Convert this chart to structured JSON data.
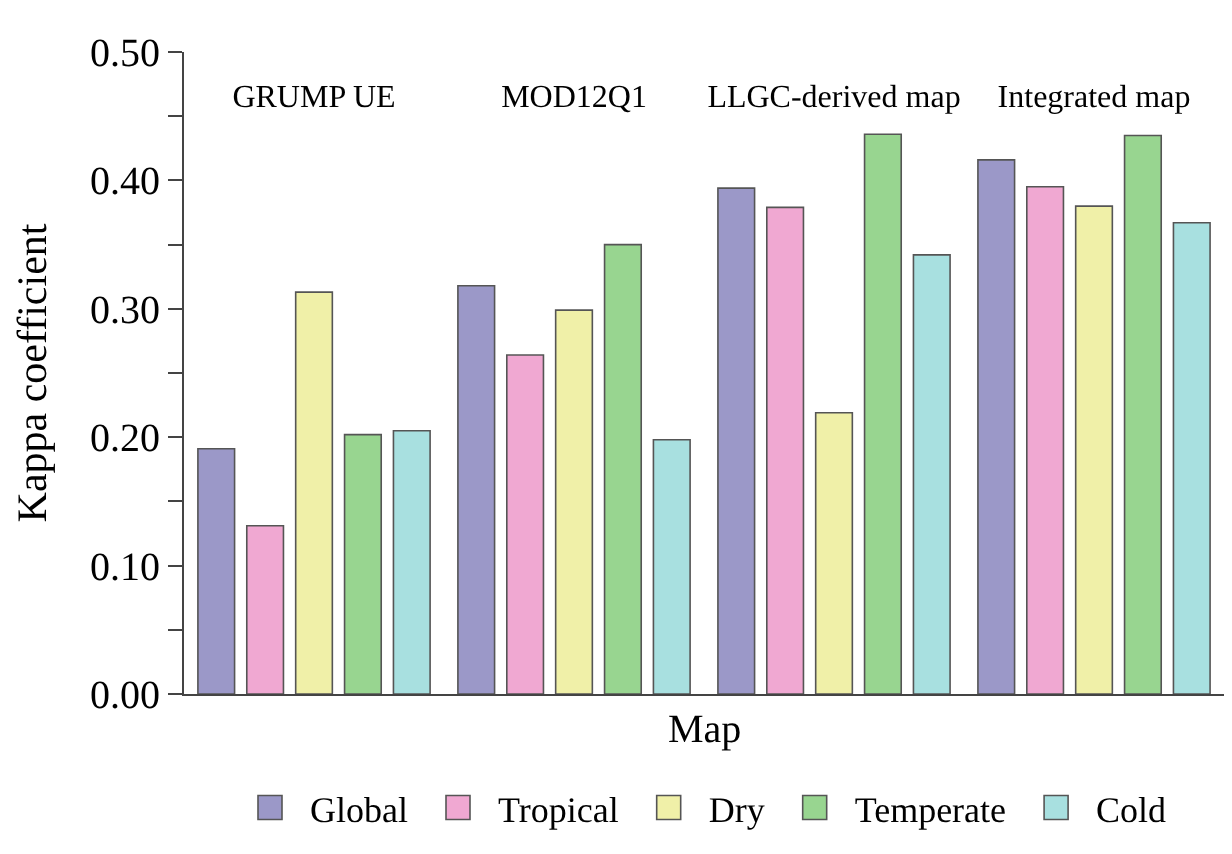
{
  "chart_data": {
    "type": "bar",
    "xlabel": "Map",
    "ylabel": "Kappa coefficient",
    "categories": [
      "GRUMP UE",
      "MOD12Q1",
      "LLGC-derived map",
      "Integrated map"
    ],
    "series": [
      {
        "name": "Global",
        "color": "#9b98c8",
        "values": [
          0.191,
          0.318,
          0.394,
          0.416
        ]
      },
      {
        "name": "Tropical",
        "color": "#f0a8d2",
        "values": [
          0.131,
          0.264,
          0.379,
          0.395
        ]
      },
      {
        "name": "Dry",
        "color": "#f0f0a8",
        "values": [
          0.313,
          0.299,
          0.219,
          0.38
        ]
      },
      {
        "name": "Temperate",
        "color": "#98d590",
        "values": [
          0.202,
          0.35,
          0.436,
          0.435
        ]
      },
      {
        "name": "Cold",
        "color": "#a8e0e0",
        "values": [
          0.205,
          0.198,
          0.342,
          0.367
        ]
      }
    ],
    "ylim": [
      0,
      0.5
    ],
    "yticks": [
      {
        "value": 0,
        "label": "0.00"
      },
      {
        "value": 0.05,
        "label": null
      },
      {
        "value": 0.1,
        "label": "0.10"
      },
      {
        "value": 0.15,
        "label": null
      },
      {
        "value": 0.2,
        "label": "0.20"
      },
      {
        "value": 0.25,
        "label": null
      },
      {
        "value": 0.3,
        "label": "0.30"
      },
      {
        "value": 0.35,
        "label": null
      },
      {
        "value": 0.4,
        "label": "0.40"
      },
      {
        "value": 0.45,
        "label": null
      },
      {
        "value": 0.5,
        "label": "0.50"
      }
    ],
    "legend": "bottom"
  }
}
